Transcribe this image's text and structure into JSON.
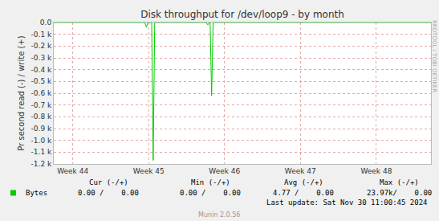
{
  "chart_data": {
    "type": "line",
    "title": "Disk throughput for /dev/loop9 - by month",
    "y_label": "Pr second read (-) / write (+)",
    "x": [
      43.75,
      44.95,
      44.97,
      44.99,
      45.04,
      45.06,
      45.08,
      45.76,
      45.78,
      45.8,
      45.81,
      45.83,
      45.85,
      48.72
    ],
    "series": [
      {
        "name": "Bytes",
        "color": "#00cc00",
        "values": [
          0,
          0,
          -40,
          0,
          0,
          -1170,
          0,
          0,
          -20,
          0,
          0,
          -620,
          0,
          0
        ]
      }
    ],
    "xlim": [
      43.75,
      48.72
    ],
    "xticks": [
      {
        "value": 44,
        "label": "Week 44"
      },
      {
        "value": 45,
        "label": "Week 45"
      },
      {
        "value": 46,
        "label": "Week 46"
      },
      {
        "value": 47,
        "label": "Week 47"
      },
      {
        "value": 48,
        "label": "Week 48"
      }
    ],
    "ylim": [
      -1200,
      0
    ],
    "yticks": [
      {
        "value": 0,
        "label": "0.0"
      },
      {
        "value": -100,
        "label": "-0.1 k"
      },
      {
        "value": -200,
        "label": "-0.2 k"
      },
      {
        "value": -300,
        "label": "-0.3 k"
      },
      {
        "value": -400,
        "label": "-0.4 k"
      },
      {
        "value": -500,
        "label": "-0.5 k"
      },
      {
        "value": -600,
        "label": "-0.6 k"
      },
      {
        "value": -700,
        "label": "-0.7 k"
      },
      {
        "value": -800,
        "label": "-0.8 k"
      },
      {
        "value": -900,
        "label": "-0.9 k"
      },
      {
        "value": -1000,
        "label": "-1.0 k"
      },
      {
        "value": -1100,
        "label": "-1.1 k"
      },
      {
        "value": -1200,
        "label": "-1.2 k"
      }
    ],
    "grid": true,
    "legend": "bottom left",
    "annotations": [
      "Cur (-/+)",
      "Min (-/+)",
      "Avg (-/+)",
      "Max (-/+)",
      "0.00 /    0.00",
      "0.00 /    0.00",
      "4.77 /    0.00",
      "23.97k/    0.00",
      "Last update: Sat Nov 30 11:00:45 2024",
      "Munin 2.0.56",
      "RRDTOOL / TOBI OETIKER"
    ]
  }
}
